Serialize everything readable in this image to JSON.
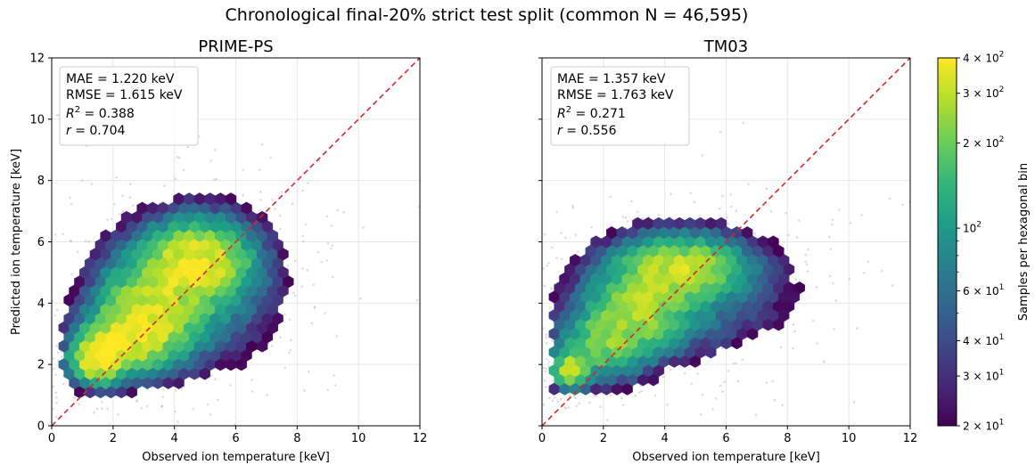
{
  "figure": {
    "suptitle": "Chronological final-20% strict test split (common N = 46,595)"
  },
  "chart_data": [
    {
      "type": "hexbin",
      "title": "PRIME-PS",
      "xlabel": "Observed ion temperature [keV]",
      "ylabel": "Predicted ion temperature [keV]",
      "xlim": [
        0,
        12
      ],
      "ylim": [
        0,
        12
      ],
      "xticks": [
        "0",
        "2",
        "4",
        "6",
        "8",
        "10",
        "12"
      ],
      "yticks": [
        "0",
        "2",
        "4",
        "6",
        "8",
        "10",
        "12"
      ],
      "grid": true,
      "identity_line": {
        "color": "#d62728",
        "style": "dashed"
      },
      "stats": {
        "mae": "MAE = 1.220 keV",
        "rmse": "RMSE = 1.615 keV",
        "r2_label": "R",
        "r2_value": " = 0.388",
        "r_label": "r",
        "r_value": " = 0.704"
      },
      "density_blobs": [
        {
          "x": 1.5,
          "y": 2.2,
          "sx": 0.55,
          "sy": 0.5,
          "peak": 380
        },
        {
          "x": 2.6,
          "y": 2.9,
          "sx": 0.9,
          "sy": 0.7,
          "peak": 260
        },
        {
          "x": 3.3,
          "y": 3.9,
          "sx": 1.1,
          "sy": 1.0,
          "peak": 200
        },
        {
          "x": 4.8,
          "y": 5.4,
          "sx": 1.0,
          "sy": 0.75,
          "peak": 300
        },
        {
          "x": 4.6,
          "y": 4.6,
          "sx": 1.8,
          "sy": 1.6,
          "peak": 90
        }
      ],
      "hex_extent": {
        "x": [
          0.4,
          9.0
        ],
        "y": [
          0.2,
          8.6
        ]
      }
    },
    {
      "type": "hexbin",
      "title": "TM03",
      "xlabel": "Observed ion temperature [keV]",
      "ylabel": "",
      "xlim": [
        0,
        12
      ],
      "ylim": [
        0,
        12
      ],
      "xticks": [
        "0",
        "2",
        "4",
        "6",
        "8",
        "10",
        "12"
      ],
      "yticks": [],
      "grid": true,
      "identity_line": {
        "color": "#d62728",
        "style": "dashed"
      },
      "stats": {
        "mae": "MAE = 1.357 keV",
        "rmse": "RMSE = 1.763 keV",
        "r2_label": "R",
        "r2_value": " = 0.271",
        "r_label": "r",
        "r_value": " = 0.556"
      },
      "density_blobs": [
        {
          "x": 0.9,
          "y": 1.8,
          "sx": 0.35,
          "sy": 0.35,
          "peak": 330
        },
        {
          "x": 2.0,
          "y": 2.6,
          "sx": 0.9,
          "sy": 0.7,
          "peak": 180
        },
        {
          "x": 3.2,
          "y": 3.8,
          "sx": 1.0,
          "sy": 0.8,
          "peak": 200
        },
        {
          "x": 4.6,
          "y": 5.2,
          "sx": 1.2,
          "sy": 0.6,
          "peak": 230
        },
        {
          "x": 4.5,
          "y": 4.4,
          "sx": 2.2,
          "sy": 1.3,
          "peak": 80
        }
      ],
      "hex_extent": {
        "x": [
          0.4,
          9.0
        ],
        "y": [
          0.6,
          7.0
        ]
      }
    }
  ],
  "colorbar": {
    "label": "Samples per hexagonal bin",
    "scale": "log",
    "range": [
      20,
      400
    ],
    "colormap": "viridis",
    "major_ticks": [
      {
        "value": 20,
        "mant": "2 × 10",
        "exp": "1"
      },
      {
        "value": 30,
        "mant": "3 × 10",
        "exp": "1"
      },
      {
        "value": 40,
        "mant": "4 × 10",
        "exp": "1"
      },
      {
        "value": 60,
        "mant": "6 × 10",
        "exp": "1"
      },
      {
        "value": 100,
        "mant": "10",
        "exp": "2"
      },
      {
        "value": 200,
        "mant": "2 × 10",
        "exp": "2"
      },
      {
        "value": 300,
        "mant": "3 × 10",
        "exp": "2"
      },
      {
        "value": 400,
        "mant": "4 × 10",
        "exp": "2"
      }
    ]
  },
  "colors": {
    "identity": "#d62728",
    "scatter": "#9a9a9a",
    "viridis": [
      "#440154",
      "#482878",
      "#3e4989",
      "#31688e",
      "#26828e",
      "#1f9e89",
      "#35b779",
      "#6ece58",
      "#b5de2b",
      "#fde725"
    ]
  }
}
